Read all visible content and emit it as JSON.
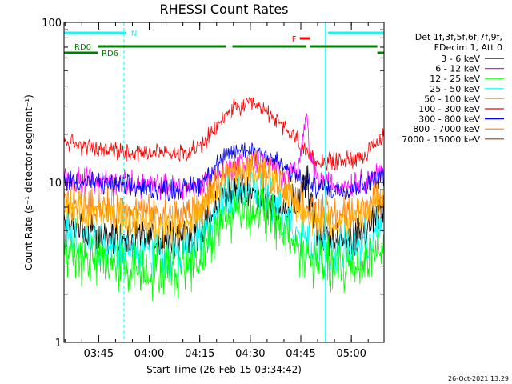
{
  "chart_data": {
    "type": "line",
    "title": "RHESSI Count Rates",
    "xlabel": "Start Time (26-Feb-15 03:34:42)",
    "ylabel": "Count Rate (s⁻¹ detector segment⁻¹)",
    "y_scale": "log",
    "ylim": [
      1,
      100
    ],
    "y_ticks": [
      {
        "value": 1,
        "label": "1"
      },
      {
        "value": 10,
        "label": "10"
      },
      {
        "value": 100,
        "label": "100"
      }
    ],
    "xlim": [
      "03:34:42",
      "05:09:40"
    ],
    "x_ticks": [
      "03:45",
      "04:00",
      "04:15",
      "04:30",
      "04:45",
      "05:00"
    ],
    "x_unit": "minutes after 03:34:42",
    "legend": {
      "header": [
        "Det 1f,3f,5f,6f,7f,9f,",
        "FDecim 1, Att 0"
      ],
      "placement": "right"
    },
    "series": [
      {
        "name": "3 - 6 keV",
        "color": "#000000",
        "x": [
          0,
          5,
          10,
          20,
          35,
          40,
          45,
          50,
          55,
          60,
          65,
          70,
          71,
          72,
          73,
          74,
          75,
          80,
          85,
          90,
          95
        ],
        "values": [
          5.3,
          5.2,
          4.9,
          4.4,
          4.4,
          4.8,
          7.0,
          8.7,
          8.6,
          7.6,
          6.5,
          7.2,
          9.5,
          10.2,
          8.5,
          6.5,
          5.0,
          4.2,
          4.4,
          5.0,
          6.6
        ]
      },
      {
        "name": "6 - 12 keV",
        "color": "#ff00ff",
        "x": [
          0,
          10,
          20,
          35,
          40,
          45,
          47,
          50,
          55,
          60,
          65,
          70,
          71,
          72,
          73,
          75,
          80,
          85,
          90,
          95
        ],
        "values": [
          10.5,
          10.2,
          9.8,
          9.3,
          9.5,
          11.5,
          11.8,
          12.5,
          13.5,
          13.0,
          11.5,
          12.5,
          20.0,
          25.0,
          15.0,
          10.5,
          9.5,
          9.8,
          10.5,
          11.5
        ]
      },
      {
        "name": "12 - 25 keV",
        "color": "#00ff00",
        "x": [
          0,
          10,
          20,
          30,
          35,
          40,
          45,
          50,
          55,
          60,
          65,
          70,
          75,
          80,
          85,
          90,
          95
        ],
        "values": [
          3.6,
          3.3,
          2.9,
          2.8,
          3.0,
          3.4,
          4.9,
          6.6,
          7.0,
          6.4,
          5.0,
          3.9,
          3.1,
          2.9,
          3.0,
          3.3,
          4.3
        ]
      },
      {
        "name": "25 - 50 keV",
        "color": "#00ffff",
        "x": [
          0,
          10,
          20,
          30,
          35,
          40,
          45,
          50,
          55,
          60,
          65,
          70,
          75,
          80,
          85,
          90,
          95
        ],
        "values": [
          4.6,
          4.3,
          3.8,
          3.6,
          3.7,
          4.1,
          6.0,
          8.3,
          8.9,
          8.0,
          6.3,
          4.9,
          3.9,
          3.6,
          3.8,
          4.2,
          5.4
        ]
      },
      {
        "name": "50 - 100 keV",
        "color": "#ffb000",
        "x": [
          0,
          10,
          20,
          30,
          35,
          40,
          45,
          50,
          55,
          60,
          65,
          70,
          75,
          80,
          85,
          90,
          95
        ],
        "values": [
          6.8,
          6.4,
          5.8,
          5.4,
          5.5,
          6.0,
          8.5,
          11.0,
          11.8,
          10.8,
          8.8,
          7.0,
          5.8,
          5.4,
          5.6,
          6.2,
          7.8
        ]
      },
      {
        "name": "100 - 300 keV",
        "color": "#ff0000",
        "x": [
          0,
          5,
          10,
          20,
          30,
          35,
          40,
          45,
          47,
          50,
          55,
          60,
          65,
          70,
          72,
          75,
          80,
          85,
          90,
          93,
          95
        ],
        "values": [
          18.0,
          17.0,
          16.0,
          15.5,
          15.5,
          15.5,
          16.5,
          21.0,
          25.0,
          28.5,
          30.5,
          28.0,
          22.0,
          18.0,
          14.5,
          13.5,
          13.5,
          14.0,
          15.0,
          17.5,
          19.5
        ]
      },
      {
        "name": "300 - 800 keV",
        "color": "#0000ff",
        "x": [
          0,
          10,
          20,
          30,
          35,
          40,
          45,
          50,
          55,
          60,
          65,
          70,
          75,
          80,
          85,
          90,
          95
        ],
        "values": [
          10.3,
          9.9,
          9.4,
          9.0,
          9.1,
          9.6,
          12.5,
          15.5,
          16.2,
          15.0,
          12.5,
          10.5,
          9.3,
          9.0,
          9.2,
          9.8,
          11.2
        ]
      },
      {
        "name": "800 - 7000 keV",
        "color": "#ff8000",
        "x": [
          0,
          10,
          20,
          30,
          35,
          40,
          45,
          50,
          55,
          60,
          65,
          70,
          75,
          80,
          85,
          90,
          95
        ],
        "values": [
          7.6,
          7.2,
          6.6,
          6.2,
          6.3,
          6.8,
          9.3,
          12.0,
          12.8,
          11.8,
          9.6,
          7.8,
          6.5,
          6.2,
          6.4,
          7.0,
          8.6
        ]
      },
      {
        "name": "7000 - 15000 keV",
        "color": "#8b4513",
        "values": []
      }
    ],
    "annotations": {
      "att_state_bar": {
        "label": "N",
        "color": "#00ffff",
        "segments": [
          [
            0,
            18.5
          ],
          [
            78.4,
            95
          ]
        ]
      },
      "flare_flag": {
        "label": "F",
        "color": "#ff0000",
        "segments": [
          [
            70,
            73
          ]
        ]
      },
      "decimation_labels": [
        "RD0",
        "RD6"
      ],
      "decimation_bars": {
        "color": "#008000",
        "upper": [
          [
            10,
            48
          ],
          [
            50,
            72
          ],
          [
            73,
            93
          ]
        ],
        "lower": [
          [
            0,
            10
          ],
          [
            93,
            95
          ]
        ]
      },
      "vertical_lines": [
        {
          "x": 0,
          "style": "solid"
        },
        {
          "x": 17.8,
          "style": "dashed"
        },
        {
          "x": 77.6,
          "style": "solid"
        },
        {
          "x": 95,
          "style": "dashed"
        }
      ]
    }
  },
  "footer": {
    "timestamp": "26-Oct-2021 13:29"
  }
}
